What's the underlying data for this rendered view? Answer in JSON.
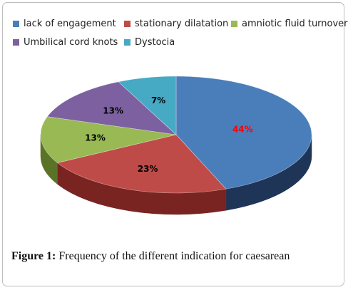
{
  "chart_data": {
    "type": "pie",
    "three_d": true,
    "legend_position": "top",
    "title": "",
    "slices": [
      {
        "label": "lack of engagement",
        "value": 44,
        "data_label": "44%",
        "color": "#4a7ebb",
        "side_color": "#1f3558",
        "label_color": "#ff0000"
      },
      {
        "label": "stationary dilatation",
        "value": 23,
        "data_label": "23%",
        "color": "#be4b48",
        "side_color": "#7a2421",
        "label_color": "#000000"
      },
      {
        "label": "amniotic fluid turnover",
        "value": 13,
        "data_label": "13%",
        "color": "#98b954",
        "side_color": "#5b7327",
        "label_color": "#000000"
      },
      {
        "label": "Umbilical cord knots",
        "value": 13,
        "data_label": "13%",
        "color": "#7d60a0",
        "side_color": "#4a3466",
        "label_color": "#000000"
      },
      {
        "label": "Dystocia",
        "value": 7,
        "data_label": "7%",
        "color": "#46aac5",
        "side_color": "#1e6b80",
        "label_color": "#000000"
      }
    ]
  },
  "caption": {
    "prefix": "Figure 1:",
    "text": " Frequency of the different indication for caesarean"
  }
}
